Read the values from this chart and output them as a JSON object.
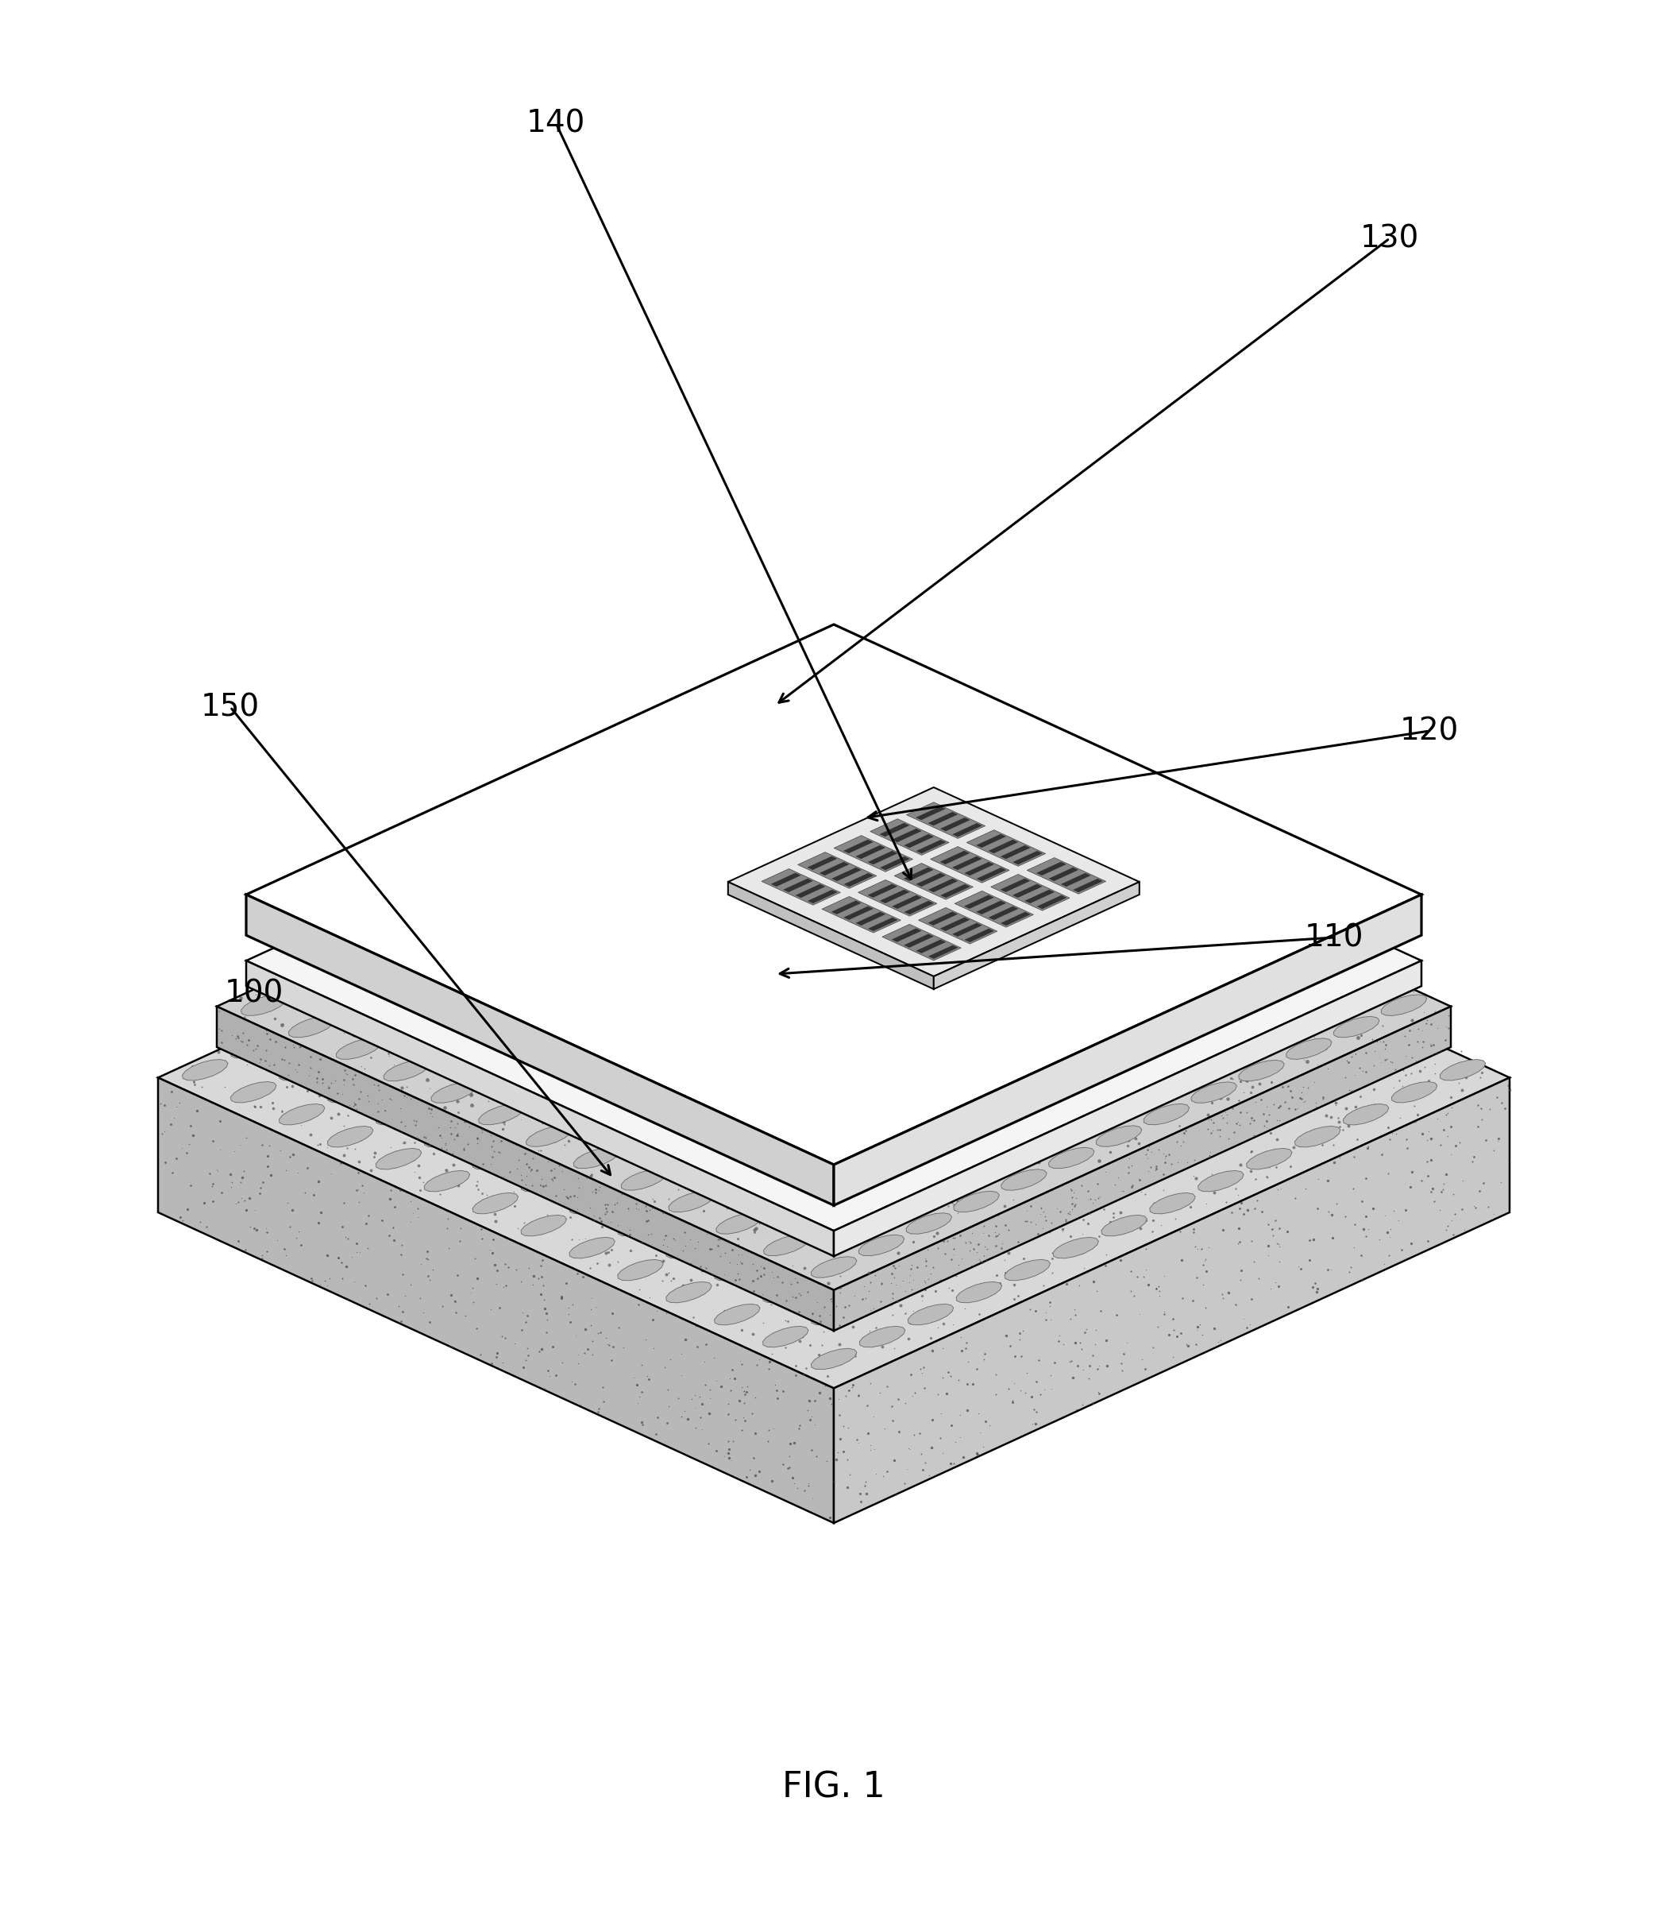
{
  "bg_color": "#ffffff",
  "line_color": "#000000",
  "line_width": 1.8,
  "fig_label": "FIG. 1",
  "font_size_label": 28,
  "font_size_fig": 32,
  "arrow_color": "#000000",
  "white": "#ffffff",
  "near_white": "#f5f5f5",
  "light_gray": "#e0e0e0",
  "mid_gray": "#b0b0b0",
  "dark_gray": "#888888",
  "darker_gray": "#666666",
  "texture_light": "#cccccc",
  "texture_dark": "#999999"
}
